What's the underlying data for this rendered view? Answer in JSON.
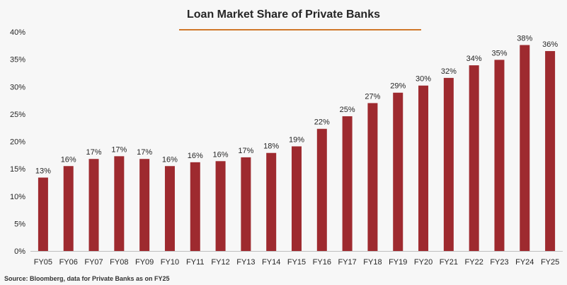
{
  "chart_data": {
    "type": "bar",
    "title": "Loan Market Share of Private Banks",
    "categories": [
      "FY05",
      "FY06",
      "FY07",
      "FY08",
      "FY09",
      "FY10",
      "FY11",
      "FY12",
      "FY13",
      "FY14",
      "FY15",
      "FY16",
      "FY17",
      "FY18",
      "FY19",
      "FY20",
      "FY21",
      "FY22",
      "FY23",
      "FY24",
      "FY25"
    ],
    "values": [
      13.4,
      15.5,
      16.8,
      17.3,
      16.8,
      15.5,
      16.2,
      16.4,
      17.1,
      17.9,
      19.1,
      22.3,
      24.6,
      27.0,
      28.9,
      30.2,
      31.6,
      33.9,
      34.9,
      37.6,
      36.5
    ],
    "data_labels": [
      "13%",
      "16%",
      "17%",
      "17%",
      "17%",
      "16%",
      "16%",
      "16%",
      "17%",
      "18%",
      "19%",
      "22%",
      "25%",
      "27%",
      "29%",
      "30%",
      "32%",
      "34%",
      "35%",
      "38%",
      "36%"
    ],
    "ylim": [
      0,
      40
    ],
    "yticks": [
      0,
      5,
      10,
      15,
      20,
      25,
      30,
      35,
      40
    ],
    "ytick_labels": [
      "0%",
      "5%",
      "10%",
      "15%",
      "20%",
      "25%",
      "30%",
      "35%",
      "40%"
    ],
    "grid": false,
    "legend": "none",
    "bar_color": "#9e2a2f"
  },
  "source_note": "Source: Bloomberg, data for Private Banks as on FY25",
  "colors": {
    "title_rule": "#d0782a",
    "background": "#f7f7f7"
  }
}
